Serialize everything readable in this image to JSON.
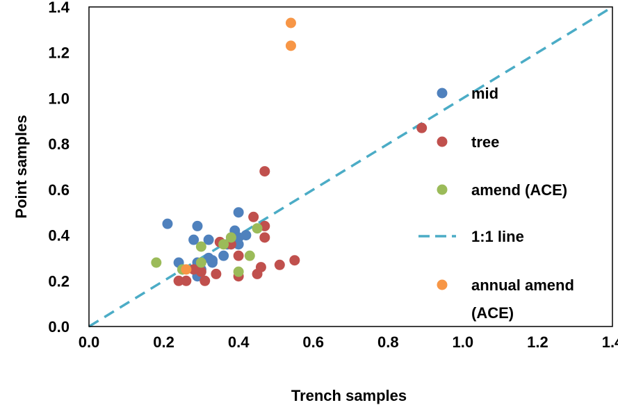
{
  "chart_data": {
    "type": "scatter",
    "title": "",
    "xlabel": "Trench samples",
    "ylabel": "Point samples",
    "xlim": [
      0.0,
      1.4
    ],
    "ylim": [
      0.0,
      1.4
    ],
    "xticks": [
      "0.0",
      "0.2",
      "0.4",
      "0.6",
      "0.8",
      "1.0",
      "1.2",
      "1.4"
    ],
    "yticks": [
      "0.0",
      "0.2",
      "0.4",
      "0.6",
      "0.8",
      "1.0",
      "1.2",
      "1.4"
    ],
    "grid": false,
    "legend_position": "right",
    "series": [
      {
        "name": "mid",
        "color": "#4F81BD",
        "points": [
          [
            0.21,
            0.45
          ],
          [
            0.24,
            0.28
          ],
          [
            0.28,
            0.38
          ],
          [
            0.29,
            0.44
          ],
          [
            0.29,
            0.22
          ],
          [
            0.29,
            0.28
          ],
          [
            0.32,
            0.38
          ],
          [
            0.33,
            0.29
          ],
          [
            0.32,
            0.3
          ],
          [
            0.33,
            0.28
          ],
          [
            0.36,
            0.31
          ],
          [
            0.37,
            0.36
          ],
          [
            0.39,
            0.42
          ],
          [
            0.4,
            0.39
          ],
          [
            0.4,
            0.36
          ],
          [
            0.4,
            0.5
          ],
          [
            0.42,
            0.4
          ],
          [
            0.3,
            0.25
          ],
          [
            0.25,
            0.25
          ]
        ]
      },
      {
        "name": "tree",
        "color": "#C0504D",
        "points": [
          [
            0.24,
            0.2
          ],
          [
            0.26,
            0.2
          ],
          [
            0.3,
            0.24
          ],
          [
            0.31,
            0.2
          ],
          [
            0.34,
            0.23
          ],
          [
            0.35,
            0.37
          ],
          [
            0.38,
            0.36
          ],
          [
            0.4,
            0.31
          ],
          [
            0.4,
            0.22
          ],
          [
            0.44,
            0.48
          ],
          [
            0.45,
            0.23
          ],
          [
            0.46,
            0.26
          ],
          [
            0.47,
            0.44
          ],
          [
            0.47,
            0.39
          ],
          [
            0.47,
            0.68
          ],
          [
            0.51,
            0.27
          ],
          [
            0.55,
            0.29
          ],
          [
            0.89,
            0.87
          ],
          [
            0.28,
            0.25
          ]
        ]
      },
      {
        "name": "amend (ACE)",
        "color": "#9BBB59",
        "points": [
          [
            0.18,
            0.28
          ],
          [
            0.25,
            0.25
          ],
          [
            0.3,
            0.28
          ],
          [
            0.3,
            0.35
          ],
          [
            0.36,
            0.36
          ],
          [
            0.38,
            0.39
          ],
          [
            0.4,
            0.24
          ],
          [
            0.43,
            0.31
          ],
          [
            0.45,
            0.43
          ]
        ]
      },
      {
        "name": "1:1 line",
        "color": "#4BACC6",
        "style": "dashed",
        "points": [
          [
            0.0,
            0.0
          ],
          [
            1.4,
            1.4
          ]
        ]
      },
      {
        "name": "annual amend (ACE)",
        "legend_lines": [
          "annual amend",
          "(ACE)"
        ],
        "color": "#F79646",
        "points": [
          [
            0.26,
            0.25
          ],
          [
            0.54,
            1.33
          ],
          [
            0.54,
            1.23
          ]
        ]
      }
    ]
  }
}
